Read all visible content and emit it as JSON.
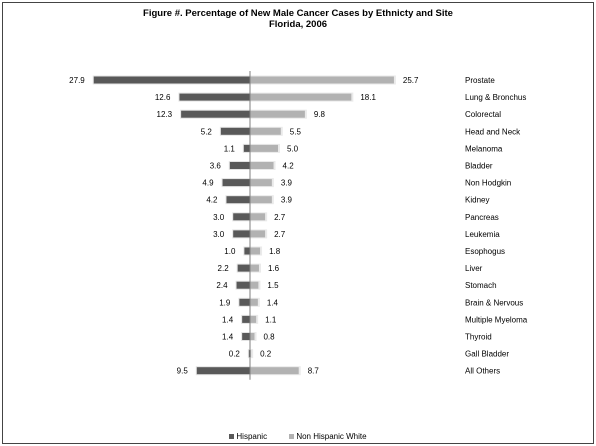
{
  "chart_data": {
    "type": "bar",
    "orientation": "horizontal-butterfly",
    "title": "Figure #. Percentage of New Male Cancer Cases by Ethnicty and Site",
    "subtitle": "Florida, 2006",
    "categories": [
      "Prostate",
      "Lung & Bronchus",
      "Colorectal",
      "Head and Neck",
      "Melanoma",
      "Bladder",
      "Non Hodgkin",
      "Kidney",
      "Pancreas",
      "Leukemia",
      "Esophogus",
      "Liver",
      "Stomach",
      "Brain & Nervous",
      "Multiple Myeloma",
      "Thyroid",
      "Gall Bladder",
      "All Others"
    ],
    "series": [
      {
        "name": "Hispanic",
        "color": "#595959",
        "values": [
          27.9,
          12.6,
          12.3,
          5.2,
          1.1,
          3.6,
          4.9,
          4.2,
          3.0,
          3.0,
          1.0,
          2.2,
          2.4,
          1.9,
          1.4,
          1.4,
          0.2,
          9.5
        ]
      },
      {
        "name": "Non Hispanic White",
        "color": "#b2b2b2",
        "values": [
          25.7,
          18.1,
          9.8,
          5.5,
          5.0,
          4.2,
          3.9,
          3.9,
          2.7,
          2.7,
          1.8,
          1.6,
          1.5,
          1.4,
          1.1,
          0.8,
          0.2,
          8.7
        ]
      }
    ],
    "value_labels": {
      "hispanic": [
        "27.9",
        "12.6",
        "12.3",
        "5.2",
        "1.1",
        "3.6",
        "4.9",
        "4.2",
        "3.0",
        "3.0",
        "1.0",
        "2.2",
        "2.4",
        "1.9",
        "1.4",
        "1.4",
        "0.2",
        "9.5"
      ],
      "non_hispanic_white": [
        "25.7",
        "18.1",
        "9.8",
        "5.5",
        "5.0",
        "4.2",
        "3.9",
        "3.9",
        "2.7",
        "2.7",
        "1.8",
        "1.6",
        "1.5",
        "1.4",
        "1.1",
        "0.8",
        "0.2",
        "8.7"
      ]
    },
    "legend_position": "bottom",
    "grid": false
  },
  "legend": {
    "hispanic": "Hispanic",
    "non_hispanic_white": "Non Hispanic White"
  }
}
